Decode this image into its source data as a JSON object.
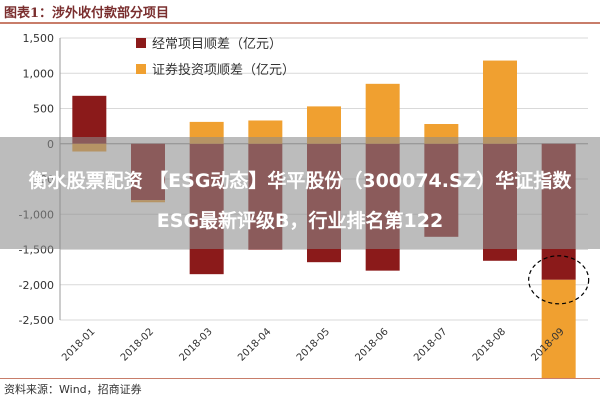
{
  "header": {
    "title": "图表1：涉外收付款部分项目"
  },
  "overlay": {
    "headline": "衡水股票配资 【ESG动态】华平股份（300074.SZ）华证指数ESG最新评级B，行业排名第122"
  },
  "footer": {
    "source": "资料来源：Wind，招商证券"
  },
  "colors": {
    "current_account": "#8b1a1a",
    "securities_investment": "#f0a030",
    "title": "#7a2e2e",
    "rule": "#c87d6a"
  },
  "chart_data": {
    "type": "bar",
    "categories": [
      "2018-01",
      "2018-02",
      "2018-03",
      "2018-04",
      "2018-05",
      "2018-06",
      "2018-07",
      "2018-08",
      "2018-09"
    ],
    "series": [
      {
        "name": "经常项目顺差（亿元）",
        "values": [
          680,
          -800,
          -1850,
          -1500,
          -1680,
          -1800,
          -1320,
          -1660,
          -1930
        ]
      },
      {
        "name": "证券投资项顺差（亿元）",
        "values": [
          -110,
          -30,
          310,
          330,
          530,
          850,
          280,
          1180,
          -1970
        ]
      }
    ],
    "xlabel": "",
    "ylabel": "",
    "ylim": [
      -2500,
      1500
    ],
    "yticks": [
      -2500,
      -2000,
      -1500,
      -1000,
      -500,
      0,
      500,
      1000,
      1500
    ],
    "ytick_labels": [
      "-2,500",
      "-2,000",
      "-1,500",
      "-1,000",
      "-500",
      "0",
      "500",
      "1,000",
      "1,500"
    ],
    "grid": true,
    "legend_position": "top-left",
    "annotation": "dashed circle around 2018-09"
  }
}
